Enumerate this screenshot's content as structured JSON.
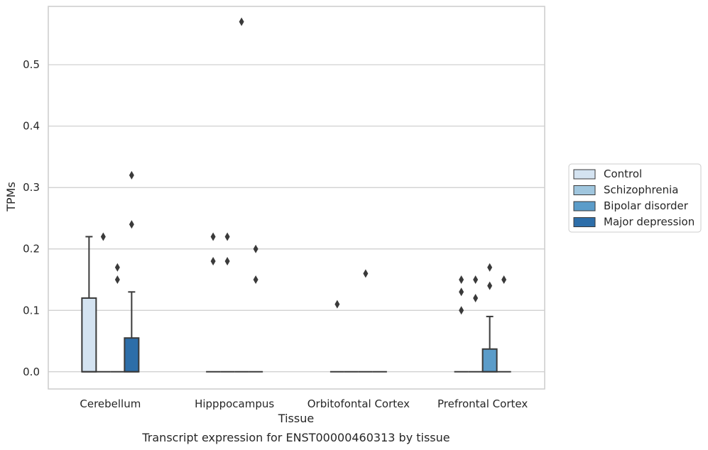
{
  "caption": "Transcript expression for ENST00000460313 by tissue",
  "colors": {
    "Control": "#d4e3f1",
    "Schizophrenia": "#a0c6de",
    "Bipolar disorder": "#5b9cc9",
    "Major depression": "#2d6ea9",
    "grid": "#cccccc",
    "stroke": "#3a3a3a"
  },
  "chart_data": {
    "type": "box",
    "xlabel": "Tissue",
    "ylabel": "TPMs",
    "ylim": [
      -0.028,
      0.595
    ],
    "yticks": [
      0.0,
      0.1,
      0.2,
      0.3,
      0.4,
      0.5
    ],
    "ytick_labels": [
      "0.0",
      "0.1",
      "0.2",
      "0.3",
      "0.4",
      "0.5"
    ],
    "categories": [
      "Cerebellum",
      "Hipppocampus",
      "Orbitofontal Cortex",
      "Prefrontal Cortex"
    ],
    "grid": true,
    "legend_position": "right",
    "series": [
      {
        "name": "Control",
        "boxes": [
          {
            "q1": 0.0,
            "median": 0.0,
            "q3": 0.12,
            "whislo": 0.0,
            "whishi": 0.22,
            "fliers": []
          },
          {
            "q1": 0.0,
            "median": 0.0,
            "q3": 0.0,
            "whislo": 0.0,
            "whishi": 0.0,
            "fliers": [
              0.22,
              0.18
            ]
          },
          {
            "q1": 0.0,
            "median": 0.0,
            "q3": 0.0,
            "whislo": 0.0,
            "whishi": 0.0,
            "fliers": [
              0.11
            ]
          },
          {
            "q1": 0.0,
            "median": 0.0,
            "q3": 0.0,
            "whislo": 0.0,
            "whishi": 0.0,
            "fliers": [
              0.15,
              0.13,
              0.1
            ]
          }
        ]
      },
      {
        "name": "Schizophrenia",
        "boxes": [
          {
            "q1": 0.0,
            "median": 0.0,
            "q3": 0.0,
            "whislo": 0.0,
            "whishi": 0.0,
            "fliers": [
              0.22
            ]
          },
          {
            "q1": 0.0,
            "median": 0.0,
            "q3": 0.0,
            "whislo": 0.0,
            "whishi": 0.0,
            "fliers": [
              0.22,
              0.18
            ]
          },
          {
            "q1": 0.0,
            "median": 0.0,
            "q3": 0.0,
            "whislo": 0.0,
            "whishi": 0.0,
            "fliers": []
          },
          {
            "q1": 0.0,
            "median": 0.0,
            "q3": 0.0,
            "whislo": 0.0,
            "whishi": 0.0,
            "fliers": [
              0.15,
              0.12
            ]
          }
        ]
      },
      {
        "name": "Bipolar disorder",
        "boxes": [
          {
            "q1": 0.0,
            "median": 0.0,
            "q3": 0.0,
            "whislo": 0.0,
            "whishi": 0.0,
            "fliers": [
              0.17,
              0.15
            ]
          },
          {
            "q1": 0.0,
            "median": 0.0,
            "q3": 0.0,
            "whislo": 0.0,
            "whishi": 0.0,
            "fliers": [
              0.57
            ]
          },
          {
            "q1": 0.0,
            "median": 0.0,
            "q3": 0.0,
            "whislo": 0.0,
            "whishi": 0.0,
            "fliers": [
              0.16
            ]
          },
          {
            "q1": 0.0,
            "median": 0.0,
            "q3": 0.037,
            "whislo": 0.0,
            "whishi": 0.09,
            "fliers": [
              0.17,
              0.14
            ]
          }
        ]
      },
      {
        "name": "Major depression",
        "boxes": [
          {
            "q1": 0.0,
            "median": 0.0,
            "q3": 0.055,
            "whislo": 0.0,
            "whishi": 0.13,
            "fliers": [
              0.32,
              0.24
            ]
          },
          {
            "q1": 0.0,
            "median": 0.0,
            "q3": 0.0,
            "whislo": 0.0,
            "whishi": 0.0,
            "fliers": [
              0.2,
              0.15
            ]
          },
          {
            "q1": 0.0,
            "median": 0.0,
            "q3": 0.0,
            "whislo": 0.0,
            "whishi": 0.0,
            "fliers": []
          },
          {
            "q1": 0.0,
            "median": 0.0,
            "q3": 0.0,
            "whislo": 0.0,
            "whishi": 0.0,
            "fliers": [
              0.15
            ]
          }
        ]
      }
    ]
  }
}
